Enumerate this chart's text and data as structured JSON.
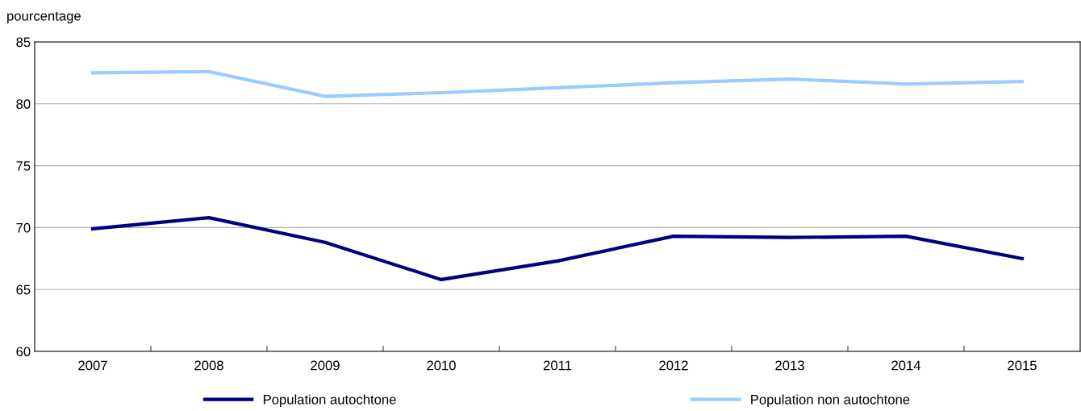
{
  "chart_data": {
    "type": "line",
    "ylabel": "pourcentage",
    "categories": [
      "2007",
      "2008",
      "2009",
      "2010",
      "2011",
      "2012",
      "2013",
      "2014",
      "2015"
    ],
    "series": [
      {
        "name": "Population autochtone",
        "color": "#000080",
        "values": [
          69.9,
          70.8,
          68.8,
          65.8,
          67.3,
          69.3,
          69.2,
          69.3,
          67.5
        ]
      },
      {
        "name": "Population non autochtone",
        "color": "#99ccff",
        "values": [
          82.5,
          82.6,
          80.6,
          80.9,
          81.3,
          81.7,
          82.0,
          81.6,
          81.8
        ]
      }
    ],
    "ylim": [
      60,
      85
    ],
    "yticks": [
      60,
      65,
      70,
      75,
      80,
      85
    ],
    "grid": "y",
    "legend": "bottom",
    "marker": "none",
    "line_style": "solid"
  }
}
